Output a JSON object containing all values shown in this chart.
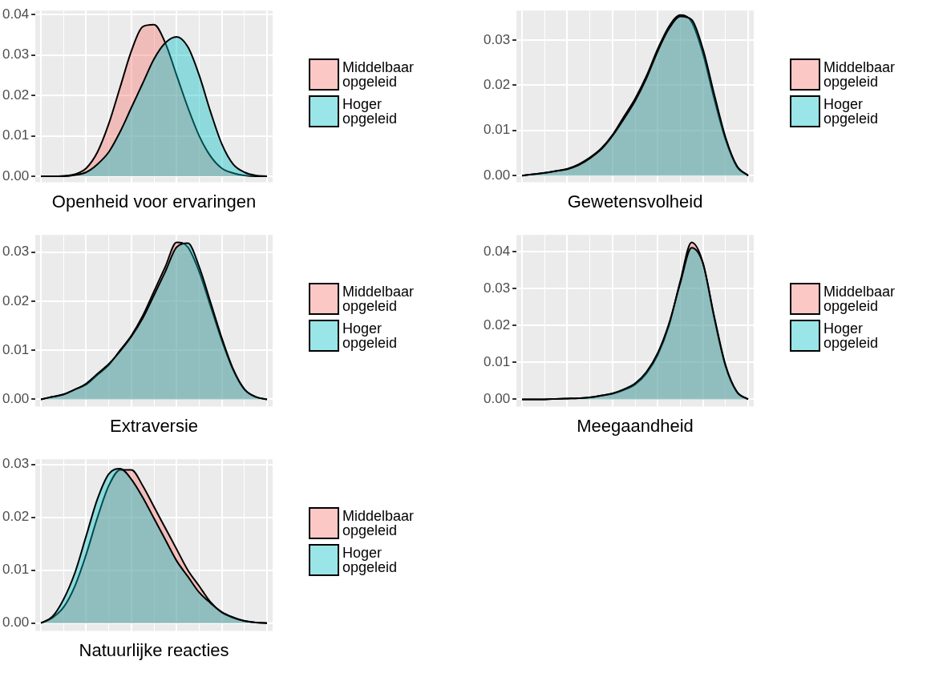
{
  "chart_data": [
    {
      "type": "area",
      "xlabel": "Openheid voor ervaringen",
      "categories": [
        null,
        null,
        null,
        null,
        null,
        null,
        null,
        null,
        null,
        null,
        null,
        null,
        null,
        null,
        null,
        null,
        null,
        null,
        null,
        null,
        null
      ],
      "ylim": [
        -0.0015,
        0.041
      ],
      "yticks": [
        {
          "value": 0,
          "label": "0.00"
        },
        {
          "value": 0.01,
          "label": "0.01"
        },
        {
          "value": 0.02,
          "label": "0.02"
        },
        {
          "value": 0.03,
          "label": "0.03"
        },
        {
          "value": 0.04,
          "label": "0.04"
        }
      ],
      "grid": true,
      "legend": "right",
      "tick_labels": "y",
      "series": [
        {
          "name": "Middelbaar opgeleid",
          "color": "#f8766d",
          "values": [
            0,
            0,
            0.0001,
            0.0005,
            0.002,
            0.006,
            0.013,
            0.022,
            0.031,
            0.037,
            0.0375,
            0.033,
            0.025,
            0.017,
            0.01,
            0.005,
            0.002,
            0.0008,
            0.0002,
            0,
            0
          ]
        },
        {
          "name": "Hoger opgeleid",
          "color": "#00bfc4",
          "values": [
            0,
            0,
            0,
            0.0003,
            0.001,
            0.003,
            0.006,
            0.011,
            0.017,
            0.023,
            0.029,
            0.033,
            0.0345,
            0.032,
            0.025,
            0.016,
            0.008,
            0.003,
            0.001,
            0.0002,
            0
          ]
        }
      ]
    },
    {
      "type": "area",
      "xlabel": "Gewetensvolheid",
      "categories": [
        null,
        null,
        null,
        null,
        null,
        null,
        null,
        null,
        null,
        null,
        null,
        null,
        null,
        null,
        null,
        null,
        null,
        null,
        null,
        null,
        null
      ],
      "ylim": [
        -0.0015,
        0.0365
      ],
      "yticks": [
        {
          "value": 0,
          "label": "0.00"
        },
        {
          "value": 0.01,
          "label": "0.01"
        },
        {
          "value": 0.02,
          "label": "0.02"
        },
        {
          "value": 0.03,
          "label": "0.03"
        }
      ],
      "grid": true,
      "legend": "right",
      "tick_labels": "y",
      "series": [
        {
          "name": "Middelbaar opgeleid",
          "color": "#f8766d",
          "values": [
            0,
            0.0003,
            0.0006,
            0.001,
            0.0015,
            0.0025,
            0.004,
            0.006,
            0.009,
            0.013,
            0.017,
            0.022,
            0.028,
            0.033,
            0.0355,
            0.034,
            0.027,
            0.017,
            0.008,
            0.002,
            0
          ]
        },
        {
          "name": "Hoger opgeleid",
          "color": "#00bfc4",
          "values": [
            0,
            0.0003,
            0.0006,
            0.001,
            0.0014,
            0.0023,
            0.0038,
            0.0058,
            0.0088,
            0.0125,
            0.0165,
            0.0215,
            0.0275,
            0.0325,
            0.0352,
            0.0345,
            0.028,
            0.018,
            0.0085,
            0.0022,
            0
          ]
        }
      ]
    },
    {
      "type": "area",
      "xlabel": "Extraversie",
      "categories": [
        null,
        null,
        null,
        null,
        null,
        null,
        null,
        null,
        null,
        null,
        null,
        null,
        null,
        null,
        null,
        null,
        null,
        null,
        null,
        null,
        null
      ],
      "ylim": [
        -0.0015,
        0.0335
      ],
      "yticks": [
        {
          "value": 0,
          "label": "0.00"
        },
        {
          "value": 0.01,
          "label": "0.01"
        },
        {
          "value": 0.02,
          "label": "0.02"
        },
        {
          "value": 0.03,
          "label": "0.03"
        }
      ],
      "grid": true,
      "legend": "right",
      "tick_labels": "y",
      "series": [
        {
          "name": "Middelbaar opgeleid",
          "color": "#f8766d",
          "values": [
            0,
            0.0005,
            0.001,
            0.002,
            0.003,
            0.005,
            0.007,
            0.01,
            0.013,
            0.017,
            0.022,
            0.027,
            0.032,
            0.031,
            0.026,
            0.019,
            0.012,
            0.006,
            0.002,
            0.0005,
            0
          ]
        },
        {
          "name": "Hoger opgeleid",
          "color": "#00bfc4",
          "values": [
            0,
            0.0005,
            0.001,
            0.002,
            0.0032,
            0.0052,
            0.0072,
            0.0098,
            0.0128,
            0.0165,
            0.0212,
            0.026,
            0.031,
            0.0318,
            0.027,
            0.0198,
            0.0125,
            0.0062,
            0.0021,
            0.0005,
            0
          ]
        }
      ]
    },
    {
      "type": "area",
      "xlabel": "Meegaandheid",
      "categories": [
        null,
        null,
        null,
        null,
        null,
        null,
        null,
        null,
        null,
        null,
        null,
        null,
        null,
        null,
        null,
        null,
        null,
        null,
        null,
        null,
        null
      ],
      "ylim": [
        -0.002,
        0.0445
      ],
      "yticks": [
        {
          "value": 0,
          "label": "0.00"
        },
        {
          "value": 0.01,
          "label": "0.01"
        },
        {
          "value": 0.02,
          "label": "0.02"
        },
        {
          "value": 0.03,
          "label": "0.03"
        },
        {
          "value": 0.04,
          "label": "0.04"
        }
      ],
      "grid": true,
      "legend": "right",
      "tick_labels": "y",
      "series": [
        {
          "name": "Middelbaar opgeleid",
          "color": "#f8766d",
          "values": [
            0,
            0,
            0,
            0.0001,
            0.0002,
            0.0003,
            0.0005,
            0.001,
            0.0015,
            0.0025,
            0.004,
            0.007,
            0.012,
            0.02,
            0.032,
            0.0425,
            0.037,
            0.022,
            0.009,
            0.002,
            0
          ]
        },
        {
          "name": "Hoger opgeleid",
          "color": "#00bfc4",
          "values": [
            0,
            0,
            0,
            0.0001,
            0.0002,
            0.0003,
            0.0005,
            0.001,
            0.0016,
            0.0027,
            0.0043,
            0.0074,
            0.0125,
            0.0205,
            0.0315,
            0.041,
            0.0368,
            0.0225,
            0.0093,
            0.0021,
            0
          ]
        }
      ]
    },
    {
      "type": "area",
      "xlabel": "Natuurlijke reacties",
      "categories": [
        null,
        null,
        null,
        null,
        null,
        null,
        null,
        null,
        null,
        null,
        null,
        null,
        null,
        null,
        null,
        null,
        null,
        null,
        null,
        null,
        null
      ],
      "ylim": [
        -0.0015,
        0.031
      ],
      "yticks": [
        {
          "value": 0,
          "label": "0.00"
        },
        {
          "value": 0.01,
          "label": "0.01"
        },
        {
          "value": 0.02,
          "label": "0.02"
        },
        {
          "value": 0.03,
          "label": "0.03"
        }
      ],
      "grid": true,
      "legend": "right",
      "tick_labels": "y",
      "series": [
        {
          "name": "Middelbaar opgeleid",
          "color": "#f8766d",
          "values": [
            0,
            0.001,
            0.003,
            0.007,
            0.013,
            0.02,
            0.026,
            0.029,
            0.029,
            0.026,
            0.022,
            0.018,
            0.014,
            0.01,
            0.007,
            0.004,
            0.002,
            0.001,
            0.0004,
            0.0001,
            0
          ]
        },
        {
          "name": "Hoger opgeleid",
          "color": "#00bfc4",
          "values": [
            0,
            0.0012,
            0.0045,
            0.0095,
            0.0165,
            0.0235,
            0.0282,
            0.0292,
            0.0272,
            0.0238,
            0.0198,
            0.0158,
            0.0118,
            0.0088,
            0.0058,
            0.0038,
            0.0021,
            0.0011,
            0.0004,
            0.0001,
            0
          ]
        }
      ]
    }
  ]
}
